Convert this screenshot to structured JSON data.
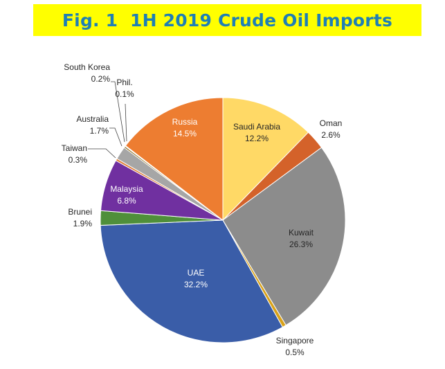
{
  "title": "Fig. 1  1H 2019 Crude Oil Imports",
  "colors": {
    "title_background": "#ffff00",
    "title_text": "#1f7fb5"
  },
  "chart_data": {
    "type": "pie",
    "title": "Fig. 1  1H 2019 Crude Oil Imports",
    "unit": "%",
    "start_angle_deg": 0,
    "direction": "clockwise",
    "slices": [
      {
        "label": "Saudi Arabia",
        "value": 12.2,
        "value_text": "12.2%",
        "color": "#ffd966"
      },
      {
        "label": "Oman",
        "value": 2.6,
        "value_text": "2.6%",
        "color": "#d4622a"
      },
      {
        "label": "Kuwait",
        "value": 26.3,
        "value_text": "26.3%",
        "color": "#8c8c8c"
      },
      {
        "label": "Singapore",
        "value": 0.5,
        "value_text": "0.5%",
        "color": "#d9a21a"
      },
      {
        "label": "UAE",
        "value": 32.2,
        "value_text": "32.2%",
        "color": "#3a5da8"
      },
      {
        "label": "Brunei",
        "value": 1.9,
        "value_text": "1.9%",
        "color": "#4f8f3a"
      },
      {
        "label": "Malaysia",
        "value": 6.8,
        "value_text": "6.8%",
        "color": "#7030a0"
      },
      {
        "label": "Taiwan",
        "value": 0.3,
        "value_text": "0.3%",
        "color": "#e0803a"
      },
      {
        "label": "Australia",
        "value": 1.7,
        "value_text": "1.7%",
        "color": "#a6a6a6"
      },
      {
        "label": "South Korea",
        "value": 0.2,
        "value_text": "0.2%",
        "color": "#8c6d1f"
      },
      {
        "label": "Phil.",
        "value": 0.1,
        "value_text": "0.1%",
        "color": "#c9c9c9"
      },
      {
        "label": "Russia",
        "value": 14.5,
        "value_text": "14.5%",
        "color": "#ed7d31"
      }
    ]
  }
}
